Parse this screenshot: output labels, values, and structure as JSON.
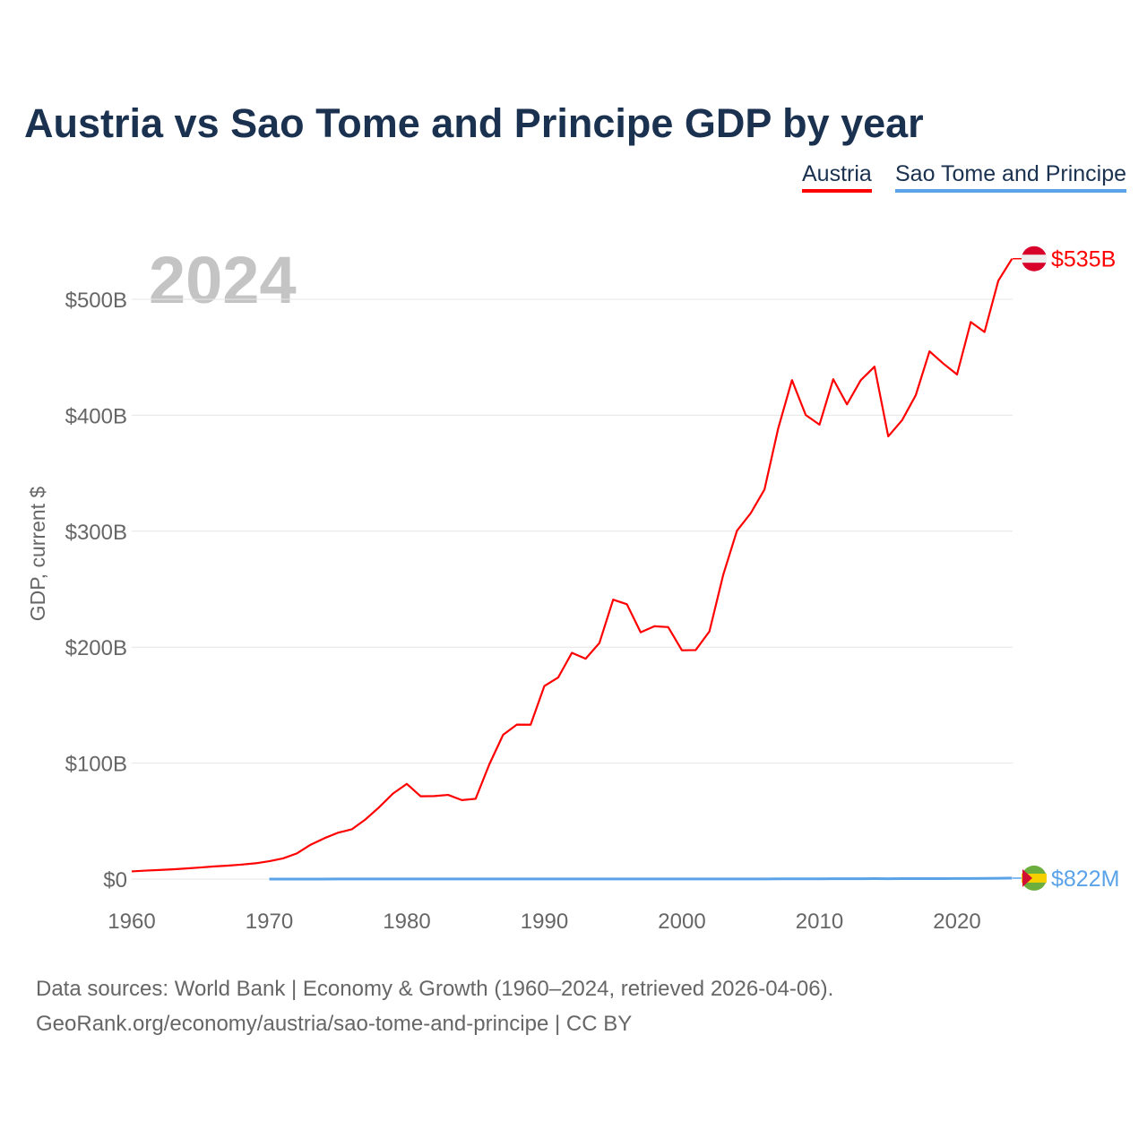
{
  "chart_data": {
    "type": "line",
    "title": "Austria vs Sao Tome and Principe GDP by year",
    "ylabel": "GDP, current $",
    "xlabel": "",
    "current_year_label": "2024",
    "xlim": [
      1960,
      2024
    ],
    "ylim": [
      0,
      535
    ],
    "x_ticks": [
      "1960",
      "1970",
      "1980",
      "1990",
      "2000",
      "2010",
      "2020"
    ],
    "y_ticks": [
      {
        "v": 0,
        "label": "$0"
      },
      {
        "v": 100,
        "label": "$100B"
      },
      {
        "v": 200,
        "label": "$200B"
      },
      {
        "v": 300,
        "label": "$300B"
      },
      {
        "v": 400,
        "label": "$400B"
      },
      {
        "v": 500,
        "label": "$500B"
      }
    ],
    "grid": true,
    "legend_position": "top-right",
    "series": [
      {
        "name": "Austria",
        "color": "#ff0000",
        "end_label": "$535B",
        "start_year": 1960,
        "values": [
          6.6,
          7.3,
          7.8,
          8.4,
          9.2,
          10.0,
          10.9,
          11.6,
          12.5,
          13.6,
          15.4,
          17.8,
          22.1,
          29.6,
          35.2,
          40.0,
          42.9,
          51.5,
          62.1,
          73.8,
          82.1,
          71.4,
          71.6,
          72.6,
          68.1,
          69.2,
          99.0,
          124.4,
          133.2,
          133.1,
          166.5,
          173.8,
          195.1,
          190.0,
          203.6,
          241.0,
          237.0,
          212.8,
          218.0,
          217.3,
          197.3,
          197.5,
          213.6,
          262.3,
          300.4,
          315.5,
          335.9,
          388.7,
          430.3,
          400.2,
          391.9,
          431.1,
          409.4,
          430.2,
          441.9,
          381.8,
          395.6,
          417.3,
          455.1,
          444.6,
          435.2,
          480.4,
          471.8,
          516.0,
          535.0
        ]
      },
      {
        "name": "Sao Tome and Principe",
        "color": "#5ba3e8",
        "end_label": "$822M",
        "start_year": 1970,
        "values": [
          0.02,
          0.02,
          0.03,
          0.03,
          0.04,
          0.05,
          0.05,
          0.06,
          0.07,
          0.08,
          0.09,
          0.08,
          0.08,
          0.08,
          0.07,
          0.07,
          0.08,
          0.08,
          0.08,
          0.08,
          0.08,
          0.08,
          0.09,
          0.08,
          0.08,
          0.08,
          0.08,
          0.08,
          0.08,
          0.08,
          0.08,
          0.08,
          0.09,
          0.1,
          0.11,
          0.13,
          0.14,
          0.15,
          0.19,
          0.2,
          0.2,
          0.25,
          0.26,
          0.3,
          0.35,
          0.32,
          0.35,
          0.38,
          0.41,
          0.43,
          0.47,
          0.53,
          0.55,
          0.66,
          0.822
        ]
      }
    ]
  },
  "source": {
    "line1": "Data sources: World Bank | Economy & Growth (1960–2024, retrieved 2026-04-06).",
    "line2": "GeoRank.org/economy/austria/sao-tome-and-principe | CC BY"
  }
}
